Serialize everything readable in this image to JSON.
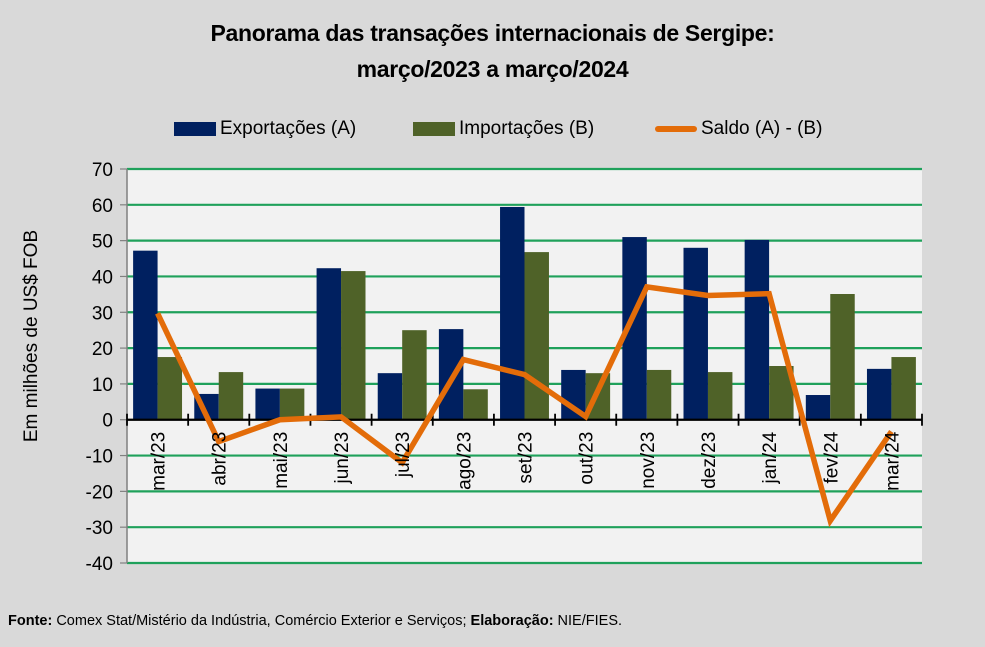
{
  "chart_data": {
    "type": "bar+line",
    "title": "Panorama  das transações internacionais de Sergipe:",
    "subtitle": "março/2023 a março/2024",
    "ylabel": "Em milhões de US$ FOB",
    "xlabel": "",
    "ylim": [
      -40,
      70
    ],
    "yticks": [
      70,
      60,
      50,
      40,
      30,
      20,
      10,
      0,
      -10,
      -20,
      -30,
      -40
    ],
    "grid": true,
    "legend_position": "top",
    "categories": [
      "mar/23",
      "abr/23",
      "mai/23",
      "jun/23",
      "jul/23",
      "ago/23",
      "set/23",
      "out/23",
      "nov/23",
      "dez/23",
      "jan/24",
      "fev/24",
      "mar/24"
    ],
    "series": [
      {
        "name": "Exportações (A)",
        "type": "bar",
        "color": "#002060",
        "values": [
          47.2,
          7.2,
          8.7,
          42.3,
          13.0,
          25.3,
          59.4,
          13.9,
          51.0,
          48.0,
          50.2,
          6.9,
          14.2
        ]
      },
      {
        "name": "Importações (B)",
        "type": "bar",
        "color": "#4f6228",
        "values": [
          17.5,
          13.3,
          8.7,
          41.5,
          25.0,
          8.5,
          46.8,
          13.0,
          13.9,
          13.3,
          15.0,
          35.1,
          17.5
        ]
      },
      {
        "name": "Saldo (A) - (B)",
        "type": "line",
        "color": "#e36c09",
        "values": [
          29.7,
          -6.1,
          0.0,
          0.8,
          -12.0,
          16.8,
          12.6,
          0.9,
          37.1,
          34.7,
          35.2,
          -28.2,
          -3.3
        ]
      }
    ]
  },
  "colors": {
    "background": "#d9d9d9",
    "plot_bg": "#f2f2f2",
    "grid": "#1fa15b"
  },
  "footer": {
    "source_label": "Fonte:",
    "source_text": " Comex Stat/Mistério da Indústria, Comércio Exterior e Serviços; ",
    "credit_label": "Elaboração:",
    "credit_text": " NIE/FIES."
  }
}
